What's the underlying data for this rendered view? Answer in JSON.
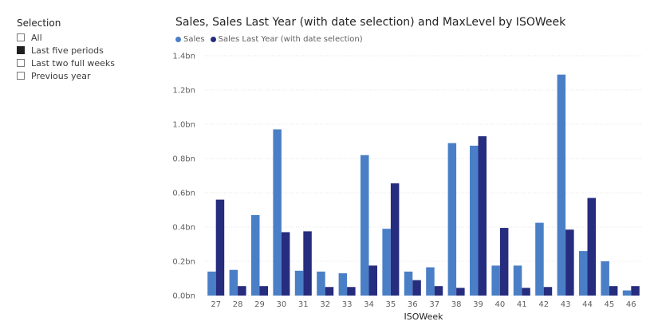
{
  "slicer": {
    "title": "Selection",
    "items": [
      {
        "label": "All",
        "selected": false
      },
      {
        "label": "Last five periods",
        "selected": true
      },
      {
        "label": "Last two full weeks",
        "selected": false
      },
      {
        "label": "Previous year",
        "selected": false
      }
    ]
  },
  "chart_data": {
    "type": "bar",
    "title": "Sales, Sales Last Year (with date selection) and MaxLevel by ISOWeek",
    "xlabel": "ISOWeek",
    "ylabel": "",
    "ylim": [
      0,
      1.4
    ],
    "yticks": [
      0,
      0.2,
      0.4,
      0.6,
      0.8,
      1.0,
      1.2,
      1.4
    ],
    "ytick_labels": [
      "0.0bn",
      "0.2bn",
      "0.4bn",
      "0.6bn",
      "0.8bn",
      "1.0bn",
      "1.2bn",
      "1.4bn"
    ],
    "legend_position": "top-left",
    "categories": [
      "27",
      "28",
      "29",
      "30",
      "31",
      "32",
      "33",
      "34",
      "35",
      "36",
      "37",
      "38",
      "39",
      "40",
      "41",
      "42",
      "43",
      "44",
      "45",
      "46"
    ],
    "series": [
      {
        "name": "Sales",
        "color": "#4a7fc7",
        "values": [
          0.14,
          0.15,
          0.47,
          0.97,
          0.145,
          0.14,
          0.13,
          0.82,
          0.39,
          0.14,
          0.165,
          0.89,
          0.875,
          0.175,
          0.175,
          0.425,
          1.29,
          0.26,
          0.2,
          0.03
        ]
      },
      {
        "name": "Sales Last Year (with date selection)",
        "color": "#262c7e",
        "values": [
          0.56,
          0.055,
          0.055,
          0.37,
          0.375,
          0.05,
          0.05,
          0.175,
          0.655,
          0.09,
          0.055,
          0.045,
          0.93,
          0.395,
          0.045,
          0.05,
          0.385,
          0.57,
          0.055,
          0.055
        ]
      }
    ]
  }
}
